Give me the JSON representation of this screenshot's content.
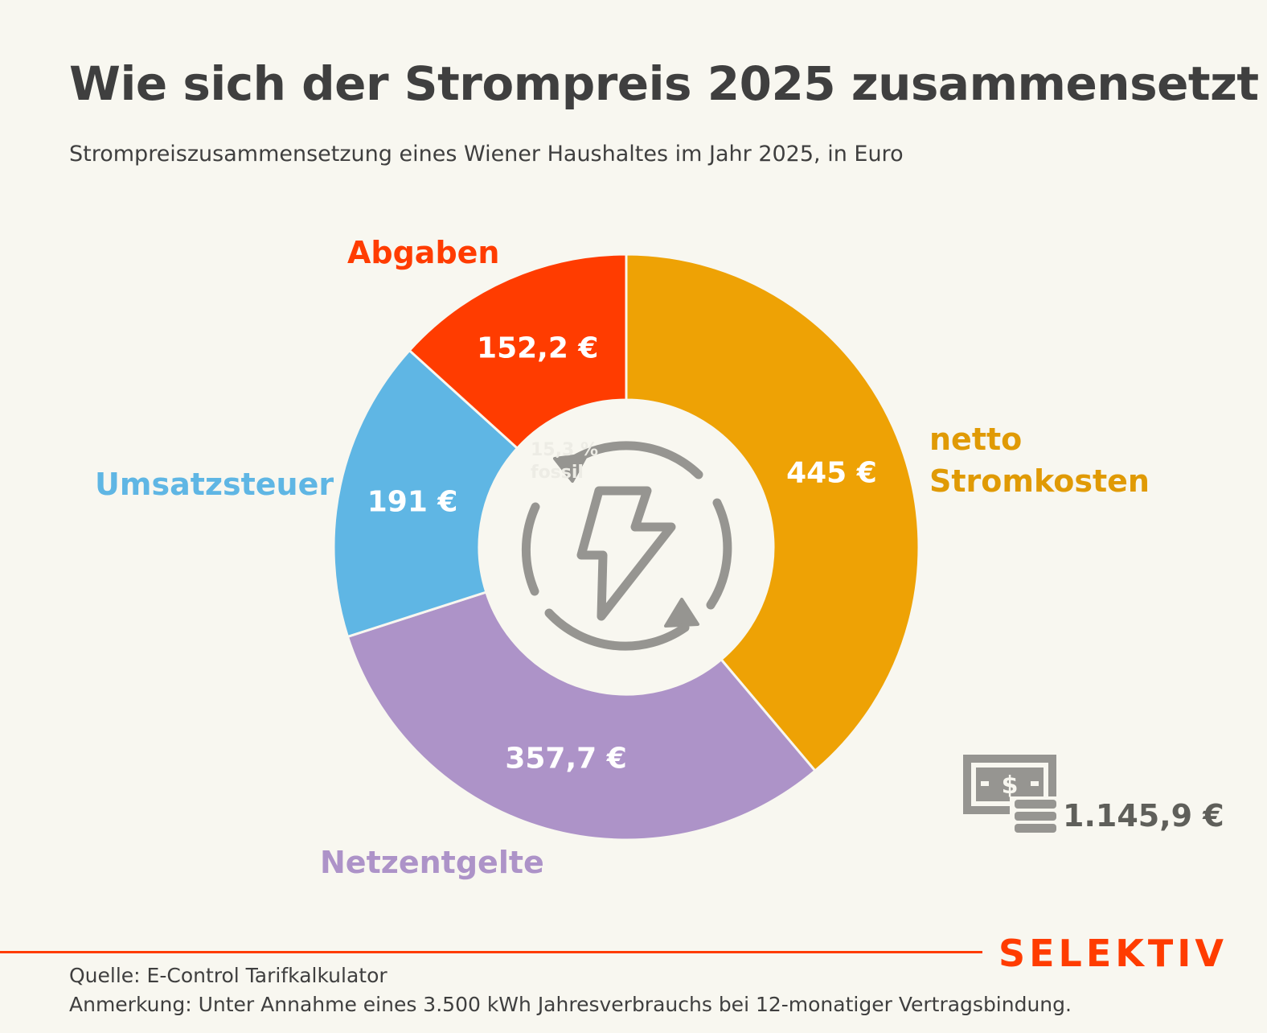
{
  "title": "Wie sich der Strompreis 2025 zusammensetzt",
  "subtitle": "Strompreiszusammensetzung eines Wiener Haushaltes im Jahr 2025, in Euro",
  "chart_data": {
    "type": "pie",
    "donut": true,
    "title": "Wie sich der Strompreis 2025 zusammensetzt",
    "unit": "€",
    "start": "top",
    "direction": "clockwise",
    "slices": [
      {
        "name": "netto Stromkosten",
        "value": 445,
        "label": "445 €",
        "color": "#EEA205"
      },
      {
        "name": "Netzentgelte",
        "value": 357.7,
        "label": "357,7 €",
        "color": "#AD93C8"
      },
      {
        "name": "Umsatzsteuer",
        "value": 191,
        "label": "191 €",
        "color": "#5FB6E4"
      },
      {
        "name": "Abgaben",
        "value": 152.2,
        "label": "152,2 €",
        "color": "#FF3C00"
      }
    ],
    "total": 1145.9,
    "total_label": "1.145,9 €"
  },
  "labels": {
    "abgaben": "Abgaben",
    "umsatzsteuer": "Umsatzsteuer",
    "netzentgelte": "Netzentgelte",
    "netto_line1": "netto",
    "netto_line2": "Stromkosten"
  },
  "ghost_text": [
    "15,3 %",
    "fossil"
  ],
  "brand": "SELEKTIV",
  "footer": {
    "source": "Quelle: E-Control Tarifkalkulator",
    "note": "Anmerkung: Unter Annahme eines 3.500 kWh Jahresverbrauchs bei 12-monatiger Vertragsbindung."
  }
}
